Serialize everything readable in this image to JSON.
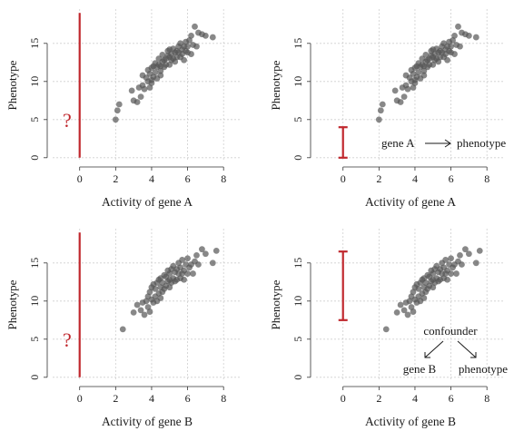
{
  "colors": {
    "accent": "#c0272d",
    "points": "#555555"
  },
  "chart_data": [
    {
      "type": "scatter",
      "id": "top-left",
      "xlabel": "Activity of gene A",
      "ylabel": "Phenotype",
      "xlim": [
        -1.5,
        9
      ],
      "ylim": [
        -0.5,
        19.5
      ],
      "xticks": [
        0,
        2,
        4,
        6,
        8
      ],
      "yticks": [
        0,
        5,
        10,
        15
      ],
      "grid": true,
      "x": [
        2.0,
        2.1,
        2.2,
        2.9,
        3.0,
        3.2,
        3.3,
        3.4,
        3.5,
        3.5,
        3.6,
        3.7,
        3.8,
        3.8,
        3.9,
        3.9,
        4.0,
        4.0,
        4.0,
        4.1,
        4.1,
        4.2,
        4.2,
        4.3,
        4.3,
        4.4,
        4.4,
        4.5,
        4.5,
        4.5,
        4.6,
        4.6,
        4.7,
        4.7,
        4.8,
        4.8,
        4.9,
        4.9,
        5.0,
        5.0,
        5.0,
        5.1,
        5.1,
        5.2,
        5.2,
        5.3,
        5.3,
        5.4,
        5.4,
        5.5,
        5.5,
        5.6,
        5.6,
        5.7,
        5.7,
        5.8,
        5.8,
        5.9,
        5.9,
        6.0,
        6.0,
        6.1,
        6.2,
        6.2,
        6.3,
        6.4,
        6.5,
        6.6,
        6.8,
        7.0,
        7.4
      ],
      "y": [
        5.0,
        6.2,
        7.0,
        8.8,
        7.5,
        7.3,
        9.2,
        8.0,
        9.5,
        10.8,
        9.0,
        10.5,
        10.0,
        11.5,
        9.2,
        11.0,
        10.2,
        11.8,
        9.8,
        12.0,
        10.6,
        11.2,
        12.4,
        10.4,
        11.9,
        12.2,
        13.0,
        10.8,
        12.0,
        11.4,
        12.6,
        13.5,
        11.9,
        12.8,
        13.0,
        12.2,
        13.4,
        14.0,
        12.2,
        13.2,
        14.2,
        12.8,
        13.6,
        13.0,
        14.3,
        13.8,
        12.6,
        14.0,
        13.2,
        13.8,
        14.6,
        13.2,
        15.0,
        14.2,
        13.6,
        14.6,
        12.8,
        14.0,
        15.2,
        13.8,
        14.6,
        15.4,
        13.6,
        16.0,
        14.8,
        17.2,
        14.6,
        16.4,
        16.2,
        16.0,
        15.8
      ],
      "marker": {
        "type": "line",
        "x": 0,
        "y_range": [
          0,
          19
        ]
      },
      "question_mark": {
        "text": "?",
        "x": -0.7,
        "y": 5
      }
    },
    {
      "type": "scatter",
      "id": "top-right",
      "xlabel": "Activity of gene A",
      "ylabel": "Phenotype",
      "xlim": [
        -1.5,
        9
      ],
      "ylim": [
        -0.5,
        19.5
      ],
      "xticks": [
        0,
        2,
        4,
        6,
        8
      ],
      "yticks": [
        0,
        5,
        10,
        15
      ],
      "grid": true,
      "same_points_as": "top-left",
      "marker": {
        "type": "errorbar",
        "x": 0,
        "y_range": [
          0,
          4
        ]
      },
      "annotation": {
        "from": "gene A",
        "to": "phenotype"
      }
    },
    {
      "type": "scatter",
      "id": "bottom-left",
      "xlabel": "Activity of gene B",
      "ylabel": "Phenotype",
      "xlim": [
        -1.5,
        9
      ],
      "ylim": [
        -0.5,
        19.5
      ],
      "xticks": [
        0,
        2,
        4,
        6,
        8
      ],
      "yticks": [
        0,
        5,
        10,
        15
      ],
      "grid": true,
      "x": [
        2.4,
        3.0,
        3.2,
        3.4,
        3.5,
        3.6,
        3.7,
        3.8,
        3.8,
        3.9,
        3.9,
        4.0,
        4.0,
        4.1,
        4.1,
        4.2,
        4.2,
        4.3,
        4.3,
        4.4,
        4.4,
        4.5,
        4.5,
        4.5,
        4.6,
        4.6,
        4.7,
        4.7,
        4.8,
        4.8,
        4.9,
        4.9,
        5.0,
        5.0,
        5.0,
        5.1,
        5.1,
        5.2,
        5.2,
        5.3,
        5.3,
        5.4,
        5.4,
        5.5,
        5.5,
        5.6,
        5.6,
        5.7,
        5.7,
        5.8,
        5.8,
        5.9,
        6.0,
        6.0,
        6.1,
        6.2,
        6.3,
        6.4,
        6.5,
        6.6,
        6.8,
        7.0,
        7.4,
        7.6
      ],
      "y": [
        6.3,
        8.5,
        9.5,
        8.8,
        9.8,
        8.2,
        10.0,
        9.2,
        10.6,
        8.6,
        11.2,
        10.2,
        11.8,
        9.8,
        12.2,
        10.6,
        11.6,
        10.0,
        12.4,
        11.0,
        12.8,
        10.4,
        11.8,
        13.0,
        11.2,
        12.4,
        11.6,
        13.4,
        12.0,
        13.2,
        12.6,
        14.0,
        11.8,
        12.8,
        13.6,
        12.4,
        14.2,
        13.0,
        14.6,
        12.6,
        13.8,
        14.2,
        12.8,
        13.6,
        15.0,
        13.0,
        14.4,
        13.6,
        15.4,
        14.0,
        12.8,
        14.8,
        13.6,
        15.6,
        14.4,
        14.8,
        13.6,
        15.2,
        16.0,
        14.8,
        16.8,
        16.2,
        15.0,
        16.6
      ],
      "marker": {
        "type": "line",
        "x": 0,
        "y_range": [
          0,
          19
        ]
      },
      "question_mark": {
        "text": "?",
        "x": -0.7,
        "y": 5
      }
    },
    {
      "type": "scatter",
      "id": "bottom-right",
      "xlabel": "Activity of gene B",
      "ylabel": "Phenotype",
      "xlim": [
        -1.5,
        9
      ],
      "ylim": [
        -0.5,
        19.5
      ],
      "xticks": [
        0,
        2,
        4,
        6,
        8
      ],
      "yticks": [
        0,
        5,
        10,
        15
      ],
      "grid": true,
      "same_points_as": "bottom-left",
      "marker": {
        "type": "errorbar",
        "x": 0,
        "y_range": [
          7.5,
          16.5
        ]
      },
      "annotation": {
        "top": "confounder",
        "left": "gene B",
        "right": "phenotype"
      }
    }
  ]
}
